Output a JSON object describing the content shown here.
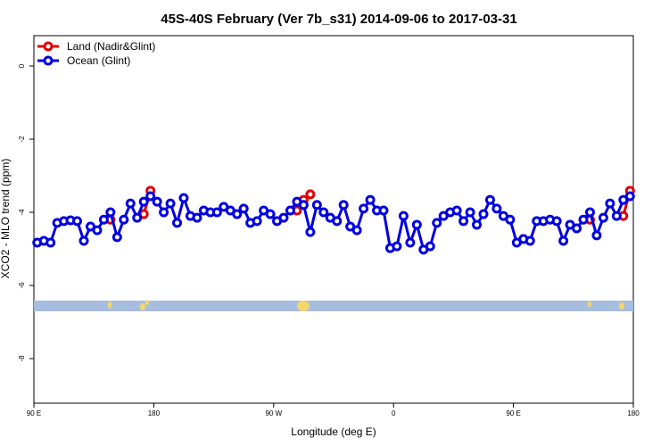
{
  "chart_data": {
    "type": "line",
    "title": "45S-40S February (Ver 7b_s31)   2014-09-06 to 2017-03-31",
    "x_label": "Longitude (deg E)",
    "y_label": "XCO2 - MLO trend (ppm)",
    "xlim": [
      90,
      540
    ],
    "xticks": [
      {
        "value": 90,
        "label": "90 E"
      },
      {
        "value": 180,
        "label": "180"
      },
      {
        "value": 270,
        "label": "90 W"
      },
      {
        "value": 360,
        "label": "0"
      },
      {
        "value": 450,
        "label": "90 E"
      },
      {
        "value": 540,
        "label": "180"
      }
    ],
    "ylim": [
      -9.22,
      0.83
    ],
    "yticks": [
      0,
      -2,
      -4,
      -6,
      -8
    ],
    "legend": "top-left",
    "x": [
      92.5,
      97.5,
      102.5,
      107.5,
      112.5,
      117.5,
      122.5,
      127.5,
      132.5,
      137.5,
      142.5,
      147.5,
      152.5,
      157.5,
      162.5,
      167.5,
      172.5,
      177.5,
      182.5,
      187.5,
      192.5,
      197.5,
      202.5,
      207.5,
      212.5,
      217.5,
      222.5,
      227.5,
      232.5,
      237.5,
      242.5,
      247.5,
      252.5,
      257.5,
      262.5,
      267.5,
      272.5,
      277.5,
      282.5,
      287.5,
      292.5,
      297.5,
      302.5,
      307.5,
      312.5,
      317.5,
      322.5,
      327.5,
      332.5,
      337.5,
      342.5,
      347.5,
      352.5,
      357.5,
      362.5,
      367.5,
      372.5,
      377.5,
      382.5,
      387.5,
      392.5,
      397.5,
      402.5,
      407.5,
      412.5,
      417.5,
      422.5,
      427.5,
      432.5,
      437.5,
      442.5,
      447.5,
      452.5,
      457.5,
      462.5,
      467.5,
      472.5,
      477.5,
      482.5,
      487.5,
      492.5,
      497.5,
      502.5,
      507.5,
      512.5,
      517.5,
      522.5,
      527.5,
      532.5,
      537.5
    ],
    "series": [
      {
        "name": "Land (Nadir&Glint)",
        "color": "#e00000",
        "values": [
          null,
          null,
          null,
          null,
          null,
          null,
          null,
          null,
          null,
          null,
          null,
          -4.2,
          null,
          null,
          null,
          null,
          -4.05,
          -3.41,
          null,
          null,
          null,
          null,
          null,
          null,
          null,
          null,
          null,
          null,
          null,
          null,
          null,
          null,
          null,
          null,
          null,
          null,
          null,
          null,
          null,
          -3.95,
          -3.66,
          -3.51,
          null,
          null,
          null,
          null,
          null,
          null,
          null,
          null,
          null,
          null,
          null,
          null,
          null,
          null,
          null,
          null,
          null,
          null,
          null,
          null,
          null,
          null,
          null,
          null,
          null,
          null,
          null,
          null,
          null,
          null,
          null,
          null,
          null,
          null,
          null,
          null,
          null,
          null,
          null,
          null,
          null,
          -4.2,
          null,
          null,
          null,
          null,
          -4.1,
          -3.41
        ]
      },
      {
        "name": "Ocean (Glint)",
        "color": "#0000e0",
        "values": [
          -4.83,
          -4.78,
          -4.83,
          -4.29,
          -4.24,
          -4.22,
          -4.24,
          -4.78,
          -4.39,
          -4.49,
          -4.2,
          -4.0,
          -4.68,
          -4.2,
          -3.76,
          -4.15,
          -3.71,
          -3.56,
          -3.71,
          -4.0,
          -3.76,
          -4.29,
          -3.61,
          -4.1,
          -4.15,
          -3.95,
          -4.0,
          -4.0,
          -3.85,
          -3.95,
          -4.05,
          -3.9,
          -4.29,
          -4.24,
          -3.95,
          -4.05,
          -4.24,
          -4.15,
          -3.95,
          -3.71,
          -3.8,
          -4.54,
          -3.8,
          -4.0,
          -4.15,
          -4.24,
          -3.8,
          -4.39,
          -4.49,
          -3.9,
          -3.66,
          -3.95,
          -3.95,
          -4.98,
          -4.93,
          -4.1,
          -4.83,
          -4.34,
          -5.02,
          -4.93,
          -4.29,
          -4.1,
          -4.0,
          -3.95,
          -4.24,
          -4.0,
          -4.34,
          -4.05,
          -3.66,
          -3.9,
          -4.1,
          -4.2,
          -4.83,
          -4.73,
          -4.78,
          -4.24,
          -4.24,
          -4.2,
          -4.24,
          -4.78,
          -4.34,
          -4.44,
          -4.2,
          -4.0,
          -4.63,
          -4.15,
          -3.76,
          -4.1,
          -3.66,
          -3.56
        ]
      }
    ]
  }
}
